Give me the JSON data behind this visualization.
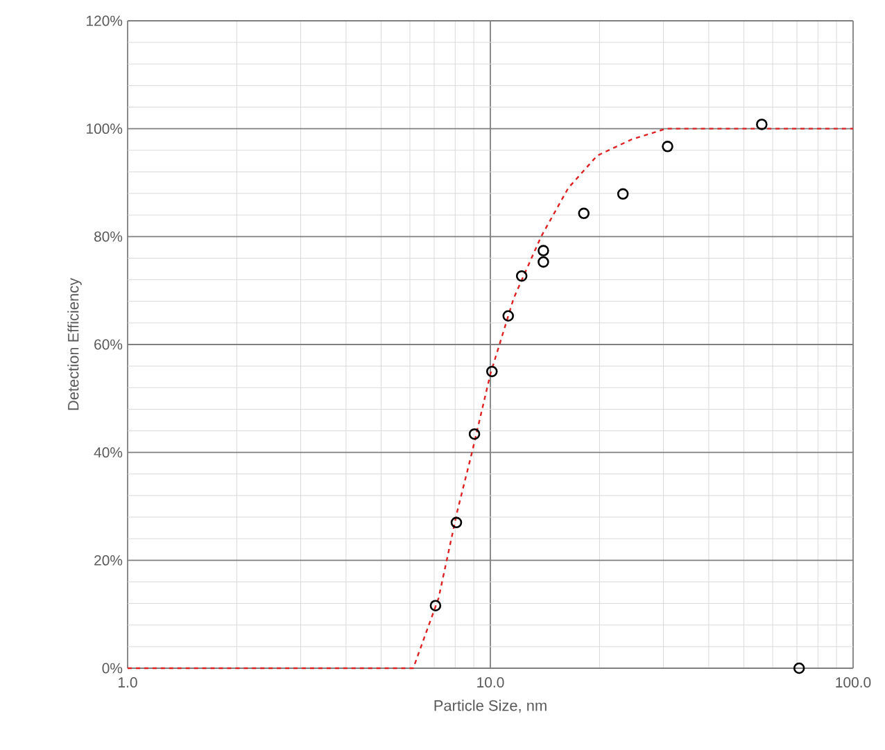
{
  "chart_data": {
    "type": "scatter",
    "xlabel": "Particle Size, nm",
    "ylabel": "Detection Efficiency",
    "log": "x",
    "grid": true,
    "xlim": [
      1,
      100
    ],
    "ylim": [
      0,
      120
    ],
    "xticks": [
      {
        "value": 1,
        "label": "1.0"
      },
      {
        "value": 10,
        "label": "10.0"
      },
      {
        "value": 100,
        "label": "100.0"
      }
    ],
    "yticks": [
      {
        "value": 0,
        "label": "0%"
      },
      {
        "value": 20,
        "label": "20%"
      },
      {
        "value": 40,
        "label": "40%"
      },
      {
        "value": 60,
        "label": "60%"
      },
      {
        "value": 80,
        "label": "80%"
      },
      {
        "value": 100,
        "label": "100%"
      },
      {
        "value": 120,
        "label": "120%"
      }
    ],
    "series": [
      {
        "color": "#000000",
        "marker": "circle",
        "x": [
          7.06,
          8.06,
          9.04,
          10.1,
          11.2,
          12.2,
          14.0,
          14.0,
          18.1,
          23.2,
          30.8,
          56.0,
          71.0
        ],
        "values": [
          11.6,
          27.0,
          43.4,
          55.0,
          65.3,
          72.7,
          77.4,
          75.3,
          84.3,
          87.9,
          96.7,
          100.8,
          0
        ]
      },
      {
        "type": "line",
        "color": "#e02020",
        "line_style": "dashed",
        "marker": "none",
        "x": [
          1,
          6.13,
          7.2,
          8.1,
          8.9,
          10,
          11.6,
          13.8,
          16.4,
          19.7,
          24.5,
          30.5,
          100
        ],
        "values": [
          0,
          0,
          13,
          29,
          40,
          54.5,
          68.6,
          80,
          89,
          95,
          98,
          100,
          100
        ]
      }
    ]
  }
}
